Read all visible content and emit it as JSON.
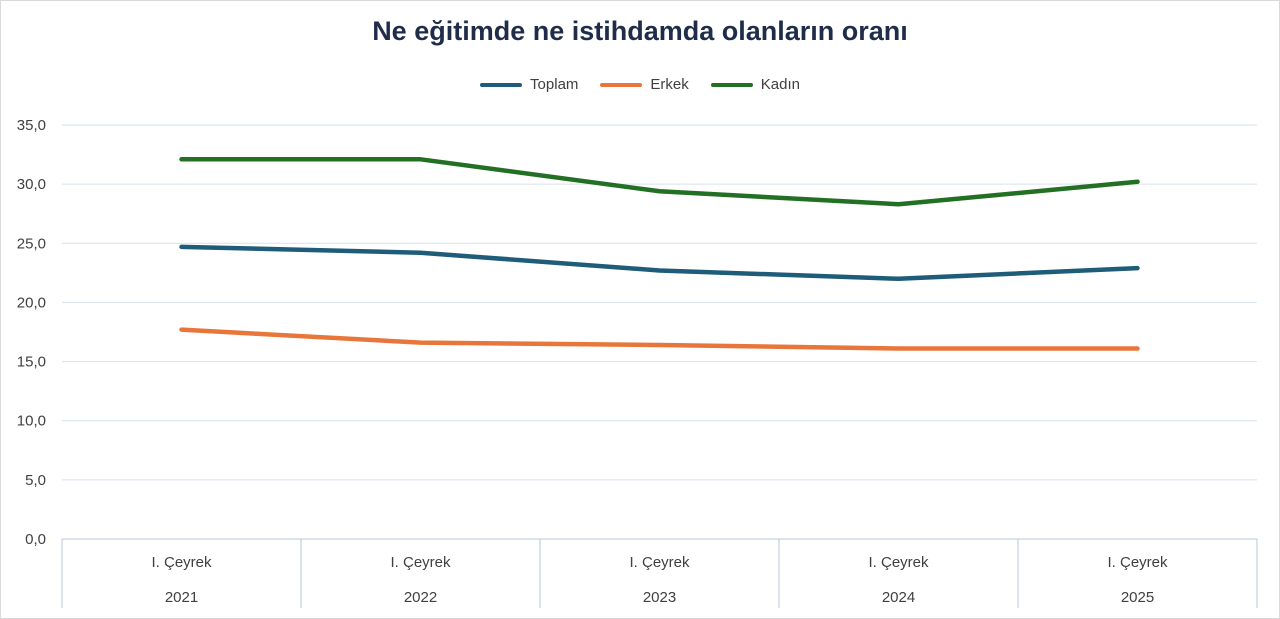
{
  "chart_data": {
    "type": "line",
    "title": "Ne eğitimde ne istihdamda olanların oranı",
    "xlabel": "",
    "ylabel": "",
    "categories": [
      {
        "top": "I. Çeyrek",
        "bottom": "2021"
      },
      {
        "top": "I. Çeyrek",
        "bottom": "2022"
      },
      {
        "top": "I. Çeyrek",
        "bottom": "2023"
      },
      {
        "top": "I. Çeyrek",
        "bottom": "2024"
      },
      {
        "top": "I. Çeyrek",
        "bottom": "2025"
      }
    ],
    "series": [
      {
        "name": "Toplam",
        "color": "#1f5c7a",
        "values": [
          24.7,
          24.2,
          22.7,
          22.0,
          22.9
        ]
      },
      {
        "name": "Erkek",
        "color": "#e8763a",
        "values": [
          17.7,
          16.6,
          16.4,
          16.1,
          16.1
        ]
      },
      {
        "name": "Kadın",
        "color": "#237025",
        "values": [
          32.1,
          32.1,
          29.4,
          28.3,
          30.2
        ]
      }
    ],
    "ylim": [
      0,
      35
    ],
    "y_ticks": [
      "0,0",
      "5,0",
      "10,0",
      "15,0",
      "20,0",
      "25,0",
      "30,0",
      "35,0"
    ],
    "grid": true,
    "legend_position": "top"
  }
}
